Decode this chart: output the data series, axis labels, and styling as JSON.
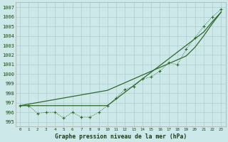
{
  "xlabel": "Graphe pression niveau de la mer (hPa)",
  "x": [
    0,
    1,
    2,
    3,
    4,
    5,
    6,
    7,
    8,
    9,
    10,
    11,
    12,
    13,
    14,
    15,
    16,
    17,
    18,
    19,
    20,
    21,
    22,
    23
  ],
  "series_measured": [
    996.7,
    996.7,
    995.9,
    996.0,
    996.0,
    995.4,
    996.0,
    995.5,
    995.5,
    996.0,
    996.7,
    997.5,
    998.4,
    998.7,
    999.5,
    999.7,
    1000.3,
    1001.2,
    1001.0,
    1002.6,
    1003.8,
    1005.0,
    1006.0,
    1006.8
  ],
  "series_line1": [
    996.7,
    996.7,
    996.7,
    996.7,
    996.7,
    996.7,
    996.7,
    996.7,
    996.7,
    996.7,
    996.7,
    997.4,
    998.1,
    998.8,
    999.5,
    1000.2,
    1000.9,
    1001.6,
    1002.3,
    1003.0,
    1003.7,
    1004.4,
    1005.5,
    1006.5
  ],
  "series_line2": [
    996.7,
    996.86,
    997.02,
    997.18,
    997.34,
    997.5,
    997.66,
    997.82,
    997.98,
    998.14,
    998.3,
    998.7,
    999.1,
    999.5,
    999.9,
    1000.3,
    1000.7,
    1001.1,
    1001.5,
    1001.9,
    1002.8,
    1004.0,
    1005.3,
    1006.5
  ],
  "ylim": [
    994.5,
    1007.5
  ],
  "xlim": [
    -0.5,
    23.5
  ],
  "yticks": [
    995,
    996,
    997,
    998,
    999,
    1000,
    1001,
    1002,
    1003,
    1004,
    1005,
    1006,
    1007
  ],
  "xticks": [
    0,
    1,
    2,
    3,
    4,
    5,
    6,
    7,
    8,
    9,
    10,
    11,
    12,
    13,
    14,
    15,
    16,
    17,
    18,
    19,
    20,
    21,
    22,
    23
  ],
  "line_color": "#2d6a2d",
  "bg_color": "#cce8e8",
  "grid_color": "#b0cece"
}
